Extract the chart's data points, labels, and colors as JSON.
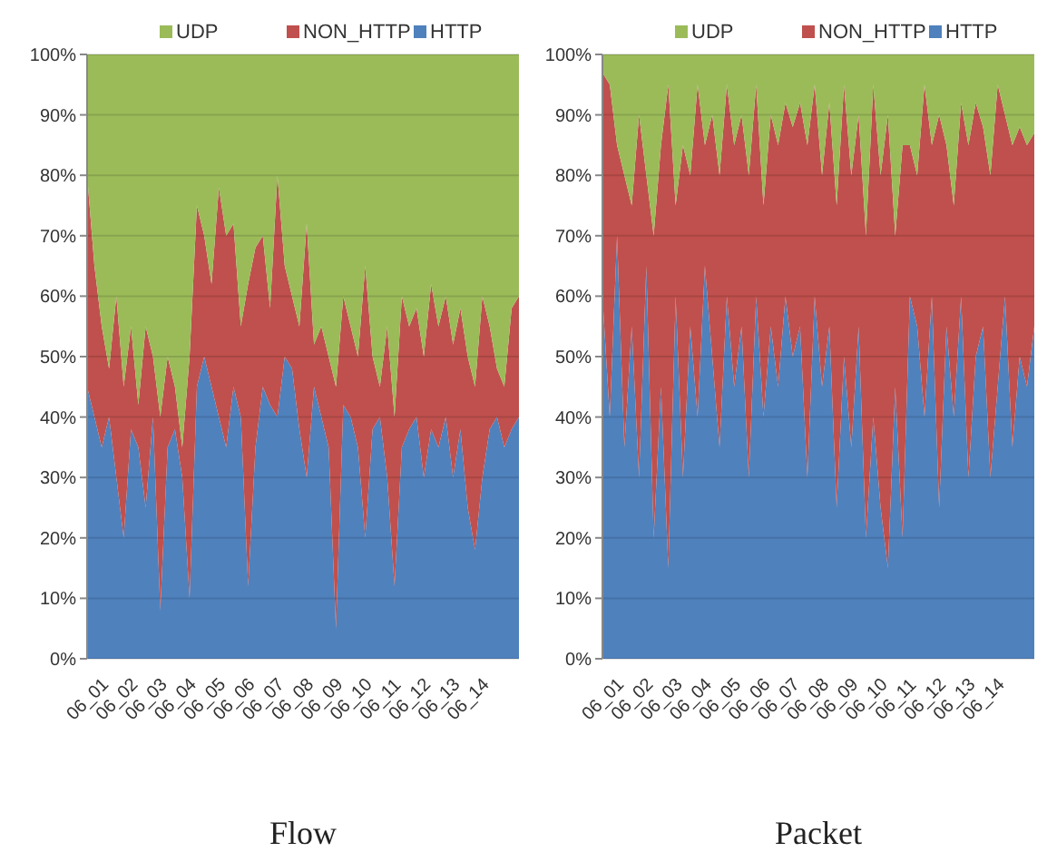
{
  "chart_data": [
    {
      "type": "area",
      "title": "Flow",
      "stacked": true,
      "legend": "top",
      "grid": "y",
      "ylim": [
        0,
        100
      ],
      "yticks": [
        {
          "value": 0,
          "label": "0%"
        },
        {
          "value": 10,
          "label": "10%"
        },
        {
          "value": 20,
          "label": "20%"
        },
        {
          "value": 30,
          "label": "30%"
        },
        {
          "value": 40,
          "label": "40%"
        },
        {
          "value": 50,
          "label": "50%"
        },
        {
          "value": 60,
          "label": "60%"
        },
        {
          "value": 70,
          "label": "70%"
        },
        {
          "value": 80,
          "label": "80%"
        },
        {
          "value": 90,
          "label": "90%"
        },
        {
          "value": 100,
          "label": "100%"
        }
      ],
      "categories": [
        "06_01",
        null,
        null,
        null,
        "06_02",
        null,
        null,
        null,
        "06_03",
        null,
        null,
        null,
        "06_04",
        null,
        null,
        null,
        "06_05",
        null,
        null,
        null,
        "06_06",
        null,
        null,
        null,
        "06_07",
        null,
        null,
        null,
        "06_08",
        null,
        null,
        null,
        "06_09",
        null,
        null,
        null,
        "06_10",
        null,
        null,
        null,
        "06_11",
        null,
        null,
        null,
        "06_12",
        null,
        null,
        null,
        "06_13",
        null,
        null,
        null,
        "06_14",
        null,
        null,
        null,
        null,
        null,
        null,
        null
      ],
      "series": [
        {
          "name": "HTTP",
          "color": "#4f81bd",
          "values": [
            45,
            40,
            35,
            40,
            30,
            20,
            38,
            35,
            25,
            40,
            8,
            35,
            38,
            30,
            10,
            45,
            50,
            45,
            40,
            35,
            45,
            40,
            12,
            35,
            45,
            42,
            40,
            50,
            48,
            38,
            30,
            45,
            40,
            35,
            5,
            42,
            40,
            35,
            20,
            38,
            40,
            30,
            12,
            35,
            38,
            40,
            30,
            38,
            35,
            40,
            30,
            38,
            25,
            18,
            30,
            38,
            40,
            35,
            38,
            40
          ]
        },
        {
          "name": "NON_HTTP",
          "color": "#c0504d",
          "values": [
            35,
            25,
            20,
            8,
            30,
            25,
            17,
            7,
            30,
            10,
            32,
            15,
            7,
            5,
            40,
            30,
            20,
            17,
            38,
            35,
            27,
            15,
            50,
            33,
            25,
            16,
            40,
            15,
            12,
            17,
            42,
            7,
            15,
            15,
            40,
            18,
            15,
            15,
            45,
            12,
            5,
            25,
            28,
            25,
            17,
            18,
            20,
            24,
            20,
            20,
            22,
            20,
            25,
            27,
            30,
            17,
            8,
            10,
            20,
            20
          ]
        },
        {
          "name": "UDP",
          "color": "#9bbb59",
          "values": [
            20,
            35,
            45,
            52,
            40,
            55,
            45,
            58,
            45,
            50,
            60,
            50,
            55,
            65,
            50,
            25,
            30,
            38,
            22,
            30,
            28,
            45,
            38,
            32,
            30,
            42,
            20,
            35,
            40,
            45,
            28,
            48,
            45,
            50,
            55,
            40,
            45,
            50,
            35,
            50,
            55,
            45,
            60,
            40,
            45,
            42,
            50,
            38,
            45,
            40,
            48,
            42,
            50,
            55,
            40,
            45,
            52,
            55,
            42,
            40
          ]
        }
      ]
    },
    {
      "type": "area",
      "title": "Packet",
      "stacked": true,
      "legend": "top",
      "grid": "y",
      "ylim": [
        0,
        100
      ],
      "yticks": [
        {
          "value": 0,
          "label": "0%"
        },
        {
          "value": 10,
          "label": "10%"
        },
        {
          "value": 20,
          "label": "20%"
        },
        {
          "value": 30,
          "label": "30%"
        },
        {
          "value": 40,
          "label": "40%"
        },
        {
          "value": 50,
          "label": "50%"
        },
        {
          "value": 60,
          "label": "60%"
        },
        {
          "value": 70,
          "label": "70%"
        },
        {
          "value": 80,
          "label": "80%"
        },
        {
          "value": 90,
          "label": "90%"
        },
        {
          "value": 100,
          "label": "100%"
        }
      ],
      "categories": [
        "06_01",
        null,
        null,
        null,
        "06_02",
        null,
        null,
        null,
        "06_03",
        null,
        null,
        null,
        "06_04",
        null,
        null,
        null,
        "06_05",
        null,
        null,
        null,
        "06_06",
        null,
        null,
        null,
        "06_07",
        null,
        null,
        null,
        "06_08",
        null,
        null,
        null,
        "06_09",
        null,
        null,
        null,
        "06_10",
        null,
        null,
        null,
        "06_11",
        null,
        null,
        null,
        "06_12",
        null,
        null,
        null,
        "06_13",
        null,
        null,
        null,
        "06_14",
        null,
        null,
        null,
        null,
        null,
        null,
        null
      ],
      "series": [
        {
          "name": "HTTP",
          "color": "#4f81bd",
          "values": [
            60,
            40,
            70,
            35,
            55,
            30,
            65,
            20,
            45,
            15,
            60,
            30,
            55,
            40,
            65,
            50,
            35,
            60,
            45,
            55,
            30,
            60,
            40,
            55,
            45,
            60,
            50,
            55,
            30,
            60,
            45,
            55,
            25,
            50,
            35,
            55,
            20,
            40,
            25,
            15,
            45,
            20,
            60,
            55,
            40,
            60,
            25,
            55,
            40,
            60,
            30,
            50,
            55,
            30,
            45,
            60,
            35,
            50,
            45,
            55
          ]
        },
        {
          "name": "NON_HTTP",
          "color": "#c0504d",
          "values": [
            37,
            55,
            15,
            45,
            20,
            60,
            15,
            50,
            40,
            80,
            15,
            55,
            25,
            55,
            20,
            40,
            45,
            35,
            40,
            35,
            50,
            35,
            35,
            35,
            40,
            32,
            38,
            37,
            55,
            35,
            35,
            37,
            50,
            45,
            45,
            35,
            50,
            55,
            55,
            75,
            25,
            65,
            25,
            25,
            55,
            25,
            65,
            30,
            35,
            32,
            55,
            42,
            33,
            50,
            50,
            30,
            50,
            38,
            40,
            32
          ]
        },
        {
          "name": "UDP",
          "color": "#9bbb59",
          "values": [
            3,
            5,
            15,
            20,
            25,
            10,
            20,
            30,
            15,
            5,
            25,
            15,
            20,
            5,
            15,
            10,
            20,
            5,
            15,
            10,
            20,
            5,
            25,
            10,
            15,
            8,
            12,
            8,
            15,
            5,
            20,
            8,
            25,
            5,
            20,
            10,
            30,
            5,
            20,
            10,
            30,
            15,
            15,
            20,
            5,
            15,
            10,
            15,
            25,
            8,
            15,
            8,
            12,
            20,
            5,
            10,
            15,
            12,
            15,
            13
          ]
        }
      ]
    }
  ]
}
